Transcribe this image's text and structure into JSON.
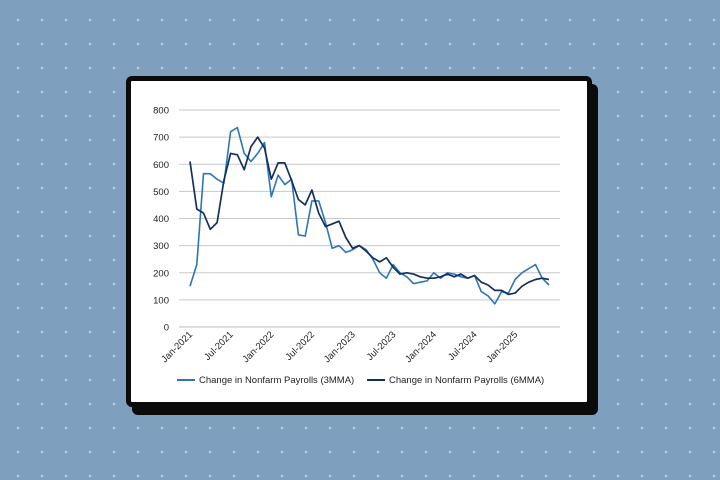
{
  "chart_data": {
    "type": "line",
    "title": "",
    "xlabel": "",
    "ylabel": "",
    "ylim": [
      0,
      800
    ],
    "y_ticks": [
      "0",
      "100",
      "200",
      "300",
      "400",
      "500",
      "600",
      "700",
      "800"
    ],
    "x_tick_labels": [
      "Jan-2021",
      "Jul-2021",
      "Jan-2022",
      "Jul-2022",
      "Jan-2023",
      "Jul-2023",
      "Jan-2024",
      "Jul-2024",
      "Jan-2025"
    ],
    "grid": "horizontal",
    "legend": "bottom",
    "x_start": "Jan-2021",
    "series": [
      {
        "name": "Change in Nonfarm Payrolls (3MMA)",
        "color": "#2e75b6",
        "values": [
          150,
          230,
          565,
          565,
          545,
          530,
          720,
          735,
          640,
          610,
          640,
          680,
          480,
          560,
          525,
          545,
          340,
          335,
          465,
          465,
          385,
          290,
          300,
          275,
          285,
          300,
          285,
          250,
          200,
          180,
          230,
          200,
          185,
          160,
          165,
          170,
          200,
          180,
          200,
          195,
          185,
          180,
          190,
          130,
          115,
          85,
          130,
          125,
          175,
          200,
          215,
          230,
          180,
          155
        ]
      },
      {
        "name": "Change in Nonfarm Payrolls (6MMA)",
        "color": "#14305c",
        "values": [
          610,
          435,
          420,
          360,
          385,
          540,
          640,
          635,
          580,
          665,
          700,
          660,
          545,
          605,
          605,
          540,
          470,
          450,
          505,
          420,
          370,
          380,
          390,
          330,
          290,
          300,
          280,
          255,
          240,
          255,
          220,
          195,
          200,
          195,
          185,
          180,
          180,
          185,
          195,
          185,
          195,
          180,
          190,
          165,
          155,
          135,
          135,
          120,
          125,
          150,
          165,
          175,
          180,
          175
        ]
      }
    ]
  }
}
